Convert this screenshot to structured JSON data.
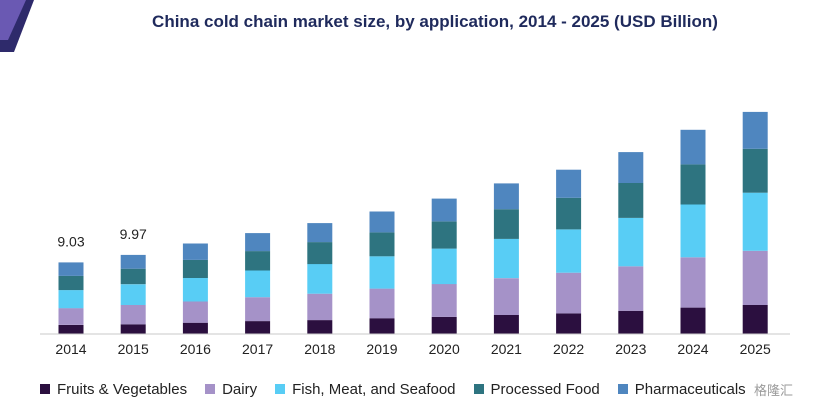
{
  "header": {
    "title": "China cold chain market size, by application, 2014 - 2025 (USD Billion)",
    "accent_colors": [
      "#5b4a9e",
      "#2e2a6b"
    ]
  },
  "chart_data": {
    "type": "bar",
    "stacked": true,
    "title": "China cold chain market size, by application, 2014 - 2025 (USD Billion)",
    "xlabel": "",
    "ylabel": "",
    "categories": [
      "2014",
      "2015",
      "2016",
      "2017",
      "2018",
      "2019",
      "2020",
      "2021",
      "2022",
      "2023",
      "2024",
      "2025"
    ],
    "series": [
      {
        "name": "Fruits & Vegetables",
        "color": "#2b0f3f",
        "values": [
          1.14,
          1.22,
          1.42,
          1.63,
          1.75,
          1.99,
          2.15,
          2.4,
          2.6,
          2.93,
          3.33,
          3.66
        ]
      },
      {
        "name": "Dairy",
        "color": "#a592c8",
        "values": [
          2.12,
          2.44,
          2.68,
          3.01,
          3.33,
          3.74,
          4.15,
          4.64,
          5.13,
          5.61,
          6.34,
          6.83
        ]
      },
      {
        "name": "Fish, Meat, and Seafood",
        "color": "#58cdf5",
        "values": [
          2.28,
          2.61,
          2.96,
          3.37,
          3.74,
          4.07,
          4.47,
          4.96,
          5.45,
          6.1,
          6.67,
          7.33
        ]
      },
      {
        "name": "Processed Food",
        "color": "#2e7480",
        "values": [
          1.79,
          1.96,
          2.28,
          2.44,
          2.77,
          3.01,
          3.42,
          3.74,
          3.99,
          4.4,
          5.05,
          5.53
        ]
      },
      {
        "name": "Pharmaceuticals",
        "color": "#4f86bf",
        "values": [
          1.7,
          1.74,
          2.07,
          2.27,
          2.39,
          2.64,
          2.88,
          3.25,
          3.54,
          3.9,
          4.36,
          4.65
        ]
      }
    ],
    "totals_labels": [
      {
        "category": "2014",
        "text": "9.03"
      },
      {
        "category": "2015",
        "text": "9.97"
      }
    ],
    "ylim": [
      0,
      29
    ],
    "y_axis_visible": false,
    "grid": false,
    "legend_position": "bottom"
  },
  "watermark": {
    "text": "格隆汇"
  }
}
